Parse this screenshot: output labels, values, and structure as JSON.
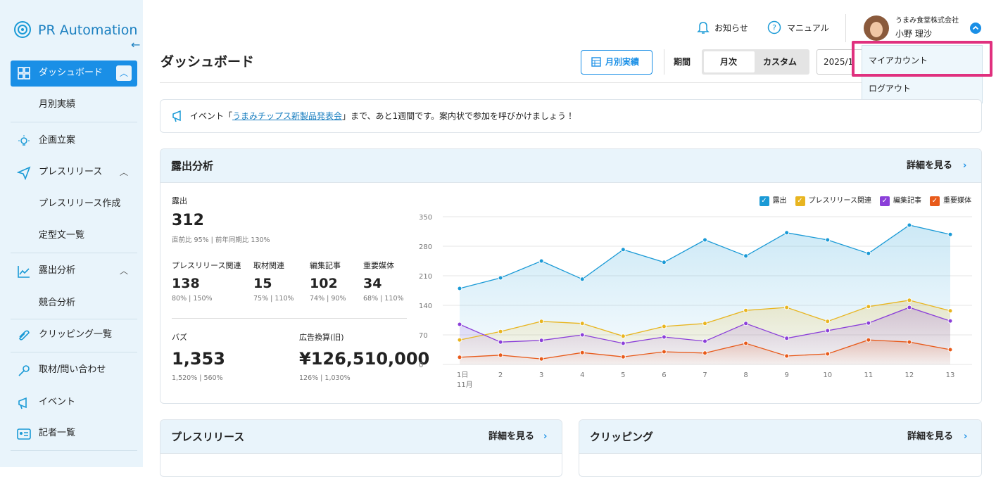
{
  "sidebar": {
    "brand": "PR Automation",
    "nav": [
      {
        "label": "ダッシュボード"
      },
      {
        "label": "月別実績"
      },
      {
        "label": "企画立案"
      },
      {
        "label": "プレスリリース"
      },
      {
        "label": "プレスリリース作成"
      },
      {
        "label": "定型文一覧"
      },
      {
        "label": "露出分析"
      },
      {
        "label": "競合分析"
      },
      {
        "label": "クリッピング一覧"
      },
      {
        "label": "取材/問い合わせ"
      },
      {
        "label": "イベント"
      },
      {
        "label": "記者一覧"
      }
    ]
  },
  "header": {
    "notifications": "お知らせ",
    "manual": "マニュアル",
    "company": "うまみ食堂株式会社",
    "user": "小野 理沙"
  },
  "dropdown": {
    "items": [
      "マイアカウント",
      "ログアウト"
    ]
  },
  "page": {
    "title": "ダッシュボード",
    "monthly_button": "月別実績",
    "period_label": "期間",
    "period_options": [
      "月次",
      "カスタム"
    ],
    "date": "2025/1"
  },
  "announcement": {
    "prefix": "イベント「",
    "link": "うまみチップス新製品発表会",
    "suffix": "」まで、あと1週間です。案内状で参加を呼びかけましょう！"
  },
  "exposure": {
    "title": "露出分析",
    "detail": "詳細を見る",
    "main": {
      "label": "露出",
      "value": "312",
      "note": "直前比 95% | 前年同期比 130%"
    },
    "metrics": [
      {
        "label": "プレスリリース関連",
        "value": "138",
        "note": "80% | 150%"
      },
      {
        "label": "取材関連",
        "value": "15",
        "note": "75% | 110%"
      },
      {
        "label": "編集記事",
        "value": "102",
        "note": "74% | 90%"
      },
      {
        "label": "重要媒体",
        "value": "34",
        "note": "68% | 110%"
      }
    ],
    "totals": [
      {
        "label": "バズ",
        "value": "1,353",
        "note": "1,520% | 560%"
      },
      {
        "label": "広告換算(旧)",
        "value": "¥126,510,000",
        "note": "126% | 1,030%"
      }
    ]
  },
  "cards": [
    {
      "title": "プレスリリース",
      "detail": "詳細を見る"
    },
    {
      "title": "クリッピング",
      "detail": "詳細を見る"
    }
  ],
  "chart_data": {
    "type": "line",
    "categories": [
      "1日",
      "2",
      "3",
      "4",
      "5",
      "6",
      "7",
      "8",
      "9",
      "10",
      "11",
      "12",
      "13"
    ],
    "month_label": "11月",
    "ylim": [
      0,
      350
    ],
    "yticks": [
      0,
      70,
      140,
      210,
      280,
      350
    ],
    "grid": true,
    "legend": "top-right",
    "series": [
      {
        "name": "露出",
        "color": "#1a9ad6",
        "values": [
          180,
          205,
          245,
          202,
          272,
          242,
          295,
          257,
          312,
          295,
          263,
          330,
          308
        ]
      },
      {
        "name": "プレスリリース関連",
        "color": "#e8b520",
        "values": [
          58,
          78,
          102,
          97,
          67,
          90,
          97,
          128,
          135,
          102,
          137,
          152,
          127
        ]
      },
      {
        "name": "編集記事",
        "color": "#8b3fd9",
        "values": [
          95,
          53,
          57,
          70,
          50,
          65,
          55,
          97,
          62,
          80,
          98,
          135,
          103
        ]
      },
      {
        "name": "重要媒体",
        "color": "#e85a1a",
        "values": [
          17,
          22,
          13,
          28,
          18,
          30,
          27,
          50,
          20,
          25,
          58,
          53,
          35
        ]
      }
    ]
  }
}
